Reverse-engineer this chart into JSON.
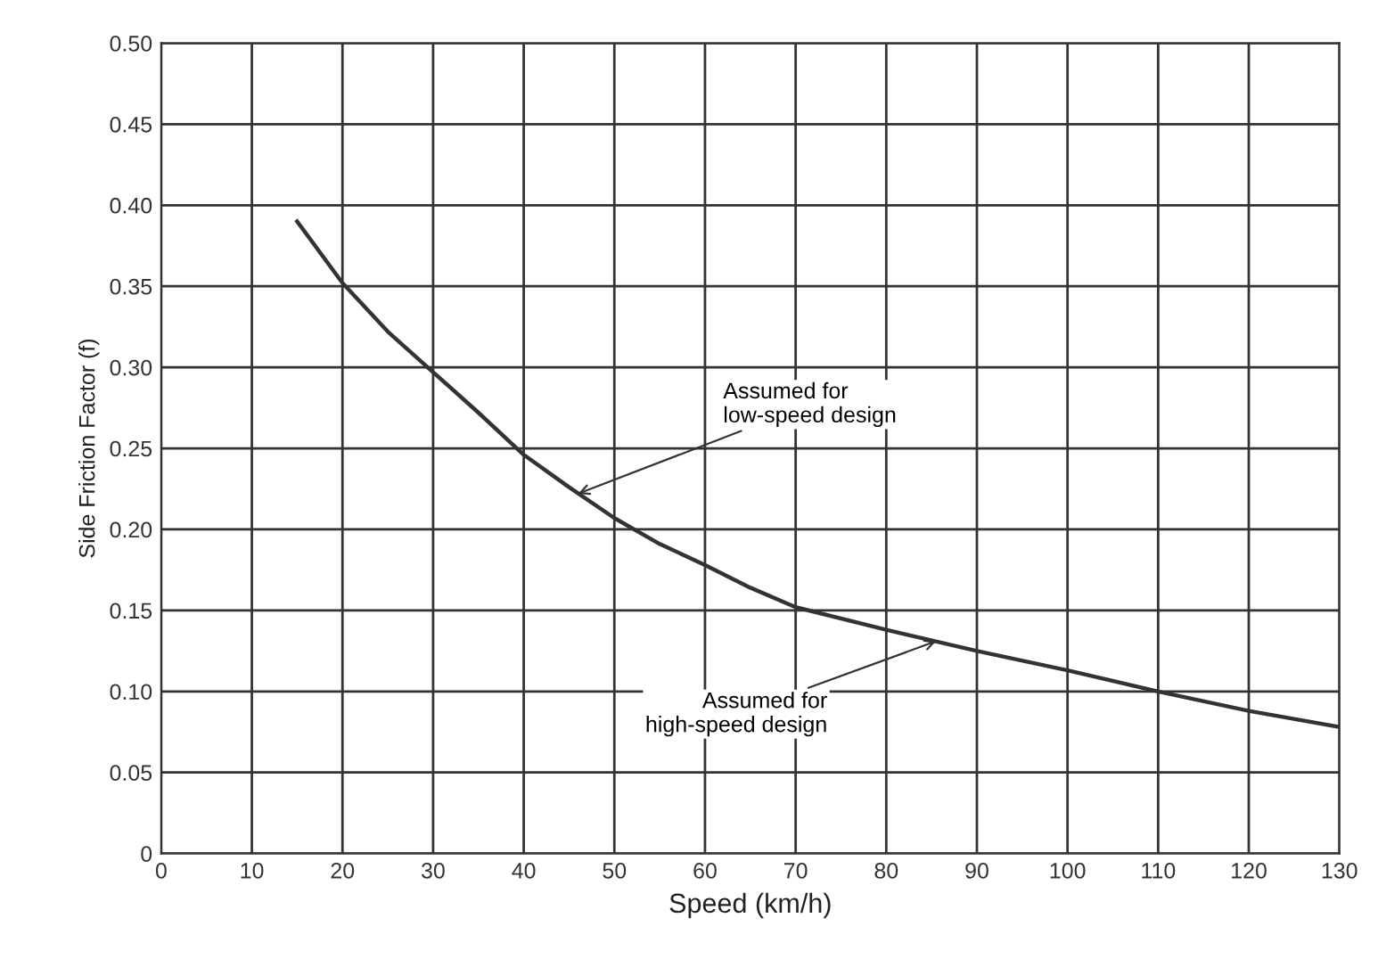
{
  "chart_data": {
    "type": "line",
    "xlabel": "Speed (km/h)",
    "ylabel": "Side Friction Factor (f)",
    "x": [
      15,
      20,
      25,
      30,
      35,
      40,
      45,
      50,
      55,
      60,
      65,
      70,
      80,
      90,
      100,
      110,
      120,
      130
    ],
    "series": [
      {
        "color": "#333333",
        "values": [
          0.39,
          0.352,
          0.322,
          0.297,
          0.272,
          0.246,
          0.226,
          0.207,
          0.191,
          0.178,
          0.164,
          0.152,
          0.138,
          0.125,
          0.113,
          0.1,
          0.088,
          0.078
        ]
      }
    ],
    "xlim": [
      0,
      130
    ],
    "xticks": [
      0,
      10,
      20,
      30,
      40,
      50,
      60,
      70,
      80,
      90,
      100,
      110,
      120,
      130
    ],
    "ylim": [
      0,
      0.5
    ],
    "yticks": [
      0,
      {
        "value": 0.05,
        "label": "0.05"
      },
      {
        "value": 0.1,
        "label": "0.10"
      },
      {
        "value": 0.15,
        "label": "0.15"
      },
      {
        "value": 0.2,
        "label": "0.20"
      },
      {
        "value": 0.25,
        "label": "0.25"
      },
      {
        "value": 0.3,
        "label": "0.30"
      },
      {
        "value": 0.35,
        "label": "0.35"
      },
      {
        "value": 0.4,
        "label": "0.40"
      },
      {
        "value": 0.45,
        "label": "0.45"
      },
      {
        "value": 0.5,
        "label": "0.50"
      }
    ],
    "grid": true,
    "legend": false,
    "marker": "none",
    "line_style": "solid",
    "annotations": [
      {
        "text": "Assumed for\nlow-speed design",
        "x": 46,
        "y": 0.222
      },
      {
        "text": "Assumed for\nhigh-speed design",
        "x": 85.5,
        "y": 0.131
      }
    ]
  }
}
